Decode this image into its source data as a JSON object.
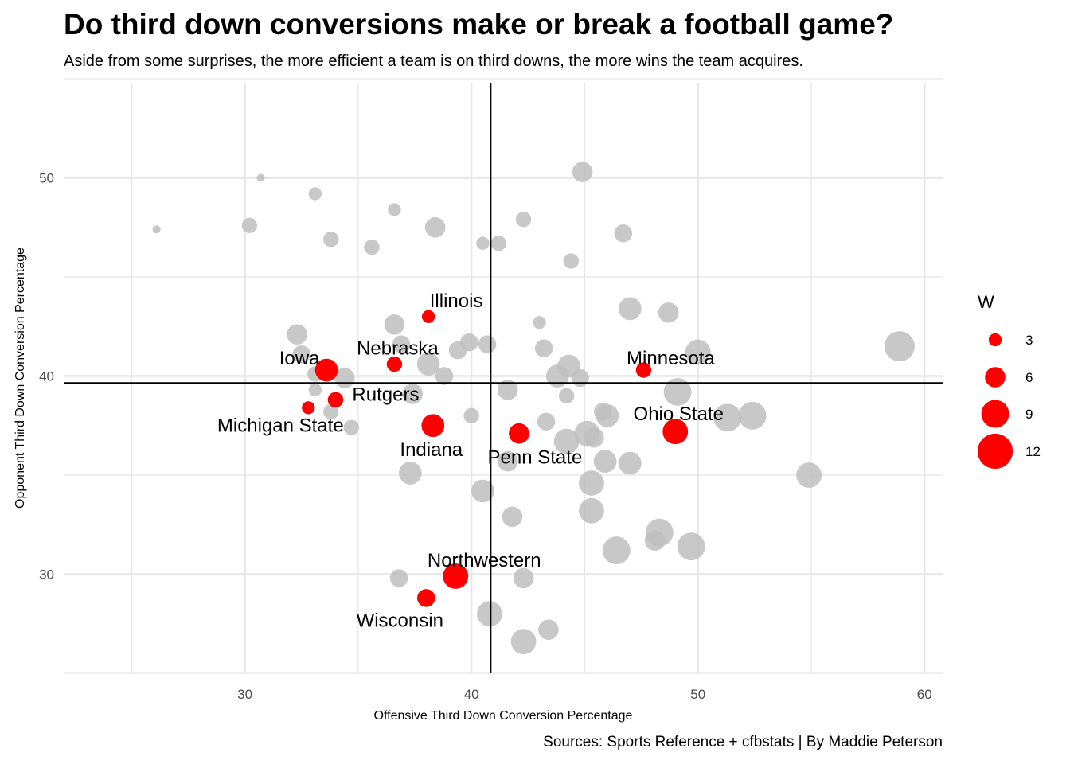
{
  "header": {
    "title": "Do third down conversions make or break a football game?",
    "subtitle": "Aside from some surprises, the more efficient a team is on third downs, the more wins the team acquires."
  },
  "footer": {
    "caption": "Sources: Sports Reference + cfbstats | By Maddie Peterson"
  },
  "colors": {
    "highlight": "#ff0000",
    "other": "#bebebe",
    "grid": "#e5e5e5",
    "reference": "#000000"
  },
  "chart_data": {
    "type": "scatter",
    "title": "Do third down conversions make or break a football game?",
    "xlabel": "Offensive Third Down Conversion Percentage",
    "ylabel": "Opponent Third Down Conversion Percentage",
    "xlim": [
      22,
      60.8
    ],
    "ylim": [
      25,
      54.8
    ],
    "x_ticks": [
      30,
      40,
      50,
      60
    ],
    "y_ticks": [
      30,
      40,
      50
    ],
    "grid": true,
    "reference_lines": {
      "x": 40.85,
      "y": 39.65
    },
    "legend": {
      "title": "W",
      "position": "right",
      "sizes": [
        3,
        6,
        9,
        12
      ],
      "labels": [
        "3",
        "6",
        "9",
        "12"
      ]
    },
    "highlighted": [
      {
        "name": "Illinois",
        "x": 38.1,
        "y": 43.0,
        "w": 3
      },
      {
        "name": "Nebraska",
        "x": 36.6,
        "y": 40.6,
        "w": 4
      },
      {
        "name": "Iowa",
        "x": 33.6,
        "y": 40.3,
        "w": 7
      },
      {
        "name": "Rutgers",
        "x": 34.0,
        "y": 38.8,
        "w": 4
      },
      {
        "name": "Michigan State",
        "x": 32.8,
        "y": 38.4,
        "w": 3
      },
      {
        "name": "Indiana",
        "x": 38.3,
        "y": 37.5,
        "w": 7
      },
      {
        "name": "Penn State",
        "x": 42.1,
        "y": 37.1,
        "w": 6
      },
      {
        "name": "Minnesota",
        "x": 47.6,
        "y": 40.3,
        "w": 4
      },
      {
        "name": "Ohio State",
        "x": 49.0,
        "y": 37.2,
        "w": 8
      },
      {
        "name": "Northwestern",
        "x": 39.3,
        "y": 29.9,
        "w": 8
      },
      {
        "name": "Wisconsin",
        "x": 38.0,
        "y": 28.8,
        "w": 5
      }
    ],
    "others": [
      {
        "x": 26.1,
        "y": 47.4,
        "w": 1
      },
      {
        "x": 30.7,
        "y": 50.0,
        "w": 1
      },
      {
        "x": 30.2,
        "y": 47.6,
        "w": 4
      },
      {
        "x": 33.1,
        "y": 49.2,
        "w": 3
      },
      {
        "x": 33.8,
        "y": 46.9,
        "w": 4
      },
      {
        "x": 35.6,
        "y": 46.5,
        "w": 4
      },
      {
        "x": 36.6,
        "y": 48.4,
        "w": 3
      },
      {
        "x": 38.4,
        "y": 47.5,
        "w": 6
      },
      {
        "x": 40.5,
        "y": 46.7,
        "w": 3
      },
      {
        "x": 41.2,
        "y": 46.7,
        "w": 4
      },
      {
        "x": 42.3,
        "y": 47.9,
        "w": 4
      },
      {
        "x": 44.9,
        "y": 50.3,
        "w": 6
      },
      {
        "x": 46.7,
        "y": 47.2,
        "w": 5
      },
      {
        "x": 44.4,
        "y": 45.8,
        "w": 4
      },
      {
        "x": 32.3,
        "y": 42.1,
        "w": 6
      },
      {
        "x": 32.5,
        "y": 41.1,
        "w": 5
      },
      {
        "x": 33.1,
        "y": 40.1,
        "w": 4
      },
      {
        "x": 33.1,
        "y": 39.3,
        "w": 3
      },
      {
        "x": 33.8,
        "y": 38.2,
        "w": 4
      },
      {
        "x": 34.4,
        "y": 39.9,
        "w": 6
      },
      {
        "x": 34.7,
        "y": 37.4,
        "w": 4
      },
      {
        "x": 36.6,
        "y": 42.6,
        "w": 6
      },
      {
        "x": 36.9,
        "y": 41.6,
        "w": 5
      },
      {
        "x": 37.4,
        "y": 39.1,
        "w": 6
      },
      {
        "x": 38.1,
        "y": 40.6,
        "w": 7
      },
      {
        "x": 38.8,
        "y": 40.0,
        "w": 5
      },
      {
        "x": 39.4,
        "y": 41.3,
        "w": 5
      },
      {
        "x": 39.9,
        "y": 41.7,
        "w": 5
      },
      {
        "x": 40.0,
        "y": 38.0,
        "w": 4
      },
      {
        "x": 40.7,
        "y": 41.6,
        "w": 5
      },
      {
        "x": 37.3,
        "y": 35.1,
        "w": 7
      },
      {
        "x": 40.5,
        "y": 34.2,
        "w": 7
      },
      {
        "x": 41.6,
        "y": 35.7,
        "w": 6
      },
      {
        "x": 41.6,
        "y": 39.3,
        "w": 6
      },
      {
        "x": 41.8,
        "y": 32.9,
        "w": 6
      },
      {
        "x": 43.0,
        "y": 42.7,
        "w": 3
      },
      {
        "x": 43.2,
        "y": 41.4,
        "w": 5
      },
      {
        "x": 43.3,
        "y": 37.7,
        "w": 5
      },
      {
        "x": 43.8,
        "y": 40.0,
        "w": 7
      },
      {
        "x": 44.2,
        "y": 39.0,
        "w": 4
      },
      {
        "x": 44.2,
        "y": 36.7,
        "w": 8
      },
      {
        "x": 44.3,
        "y": 40.5,
        "w": 7
      },
      {
        "x": 44.8,
        "y": 39.9,
        "w": 5
      },
      {
        "x": 45.1,
        "y": 37.1,
        "w": 8
      },
      {
        "x": 45.3,
        "y": 34.6,
        "w": 8
      },
      {
        "x": 45.4,
        "y": 36.9,
        "w": 6
      },
      {
        "x": 45.3,
        "y": 33.2,
        "w": 8
      },
      {
        "x": 45.8,
        "y": 38.2,
        "w": 5
      },
      {
        "x": 46.0,
        "y": 38.0,
        "w": 7
      },
      {
        "x": 45.9,
        "y": 35.7,
        "w": 7
      },
      {
        "x": 46.4,
        "y": 31.2,
        "w": 9
      },
      {
        "x": 47.0,
        "y": 43.4,
        "w": 7
      },
      {
        "x": 47.0,
        "y": 35.6,
        "w": 7
      },
      {
        "x": 48.1,
        "y": 31.7,
        "w": 6
      },
      {
        "x": 48.3,
        "y": 32.1,
        "w": 9
      },
      {
        "x": 48.7,
        "y": 43.2,
        "w": 6
      },
      {
        "x": 49.1,
        "y": 39.2,
        "w": 9
      },
      {
        "x": 49.7,
        "y": 31.4,
        "w": 9
      },
      {
        "x": 50.0,
        "y": 41.2,
        "w": 8
      },
      {
        "x": 51.3,
        "y": 37.9,
        "w": 9
      },
      {
        "x": 52.4,
        "y": 38.0,
        "w": 9
      },
      {
        "x": 54.9,
        "y": 35.0,
        "w": 8
      },
      {
        "x": 58.9,
        "y": 41.5,
        "w": 10
      },
      {
        "x": 36.8,
        "y": 29.8,
        "w": 5
      },
      {
        "x": 40.8,
        "y": 28.0,
        "w": 8
      },
      {
        "x": 42.3,
        "y": 29.8,
        "w": 6
      },
      {
        "x": 42.3,
        "y": 26.6,
        "w": 8
      },
      {
        "x": 43.4,
        "y": 27.2,
        "w": 6
      }
    ]
  }
}
